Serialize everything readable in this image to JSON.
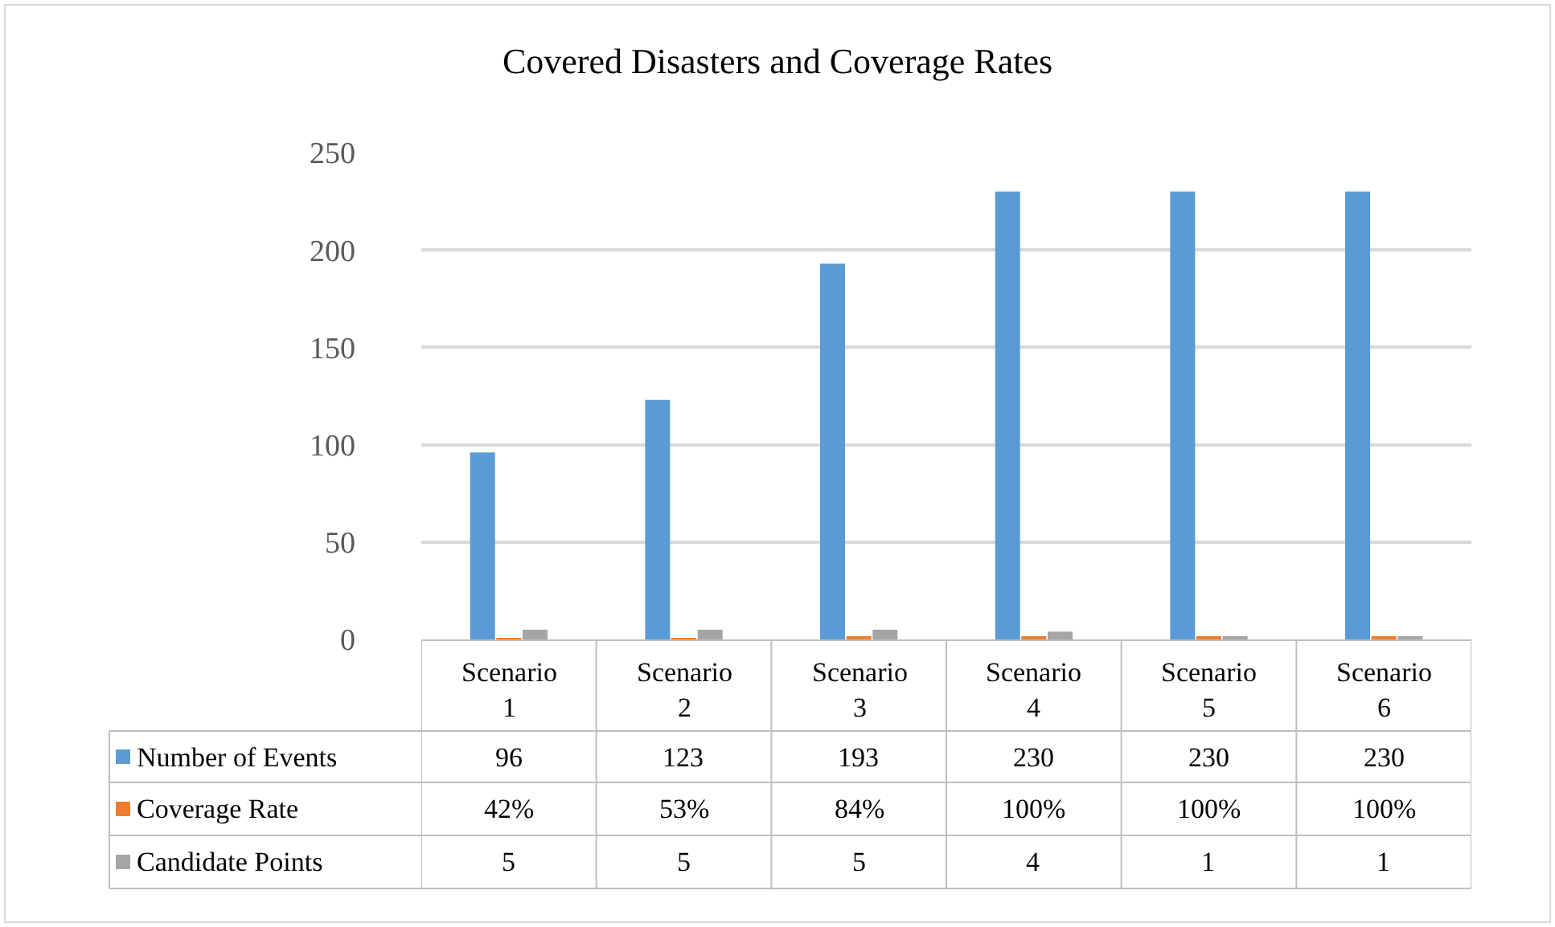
{
  "chart_data": {
    "type": "bar",
    "title": "Covered Disasters and Coverage Rates",
    "categories": [
      "Scenario 1",
      "Scenario 2",
      "Scenario 3",
      "Scenario 4",
      "Scenario 5",
      "Scenario 6"
    ],
    "series": [
      {
        "name": "Number of Events",
        "color": "#5b9bd5",
        "values": [
          96,
          123,
          193,
          230,
          230,
          230
        ],
        "value_labels": [
          "96",
          "123",
          "193",
          "230",
          "230",
          "230"
        ]
      },
      {
        "name": "Coverage Rate",
        "color": "#ed7d31",
        "values": [
          0.42,
          0.53,
          0.84,
          1,
          1,
          1
        ],
        "value_labels": [
          "42%",
          "53%",
          "84%",
          "100%",
          "100%",
          "100%"
        ]
      },
      {
        "name": "Candidate Points",
        "color": "#a5a5a5",
        "values": [
          5,
          5,
          5,
          4,
          1,
          1
        ],
        "value_labels": [
          "5",
          "5",
          "5",
          "4",
          "1",
          "1"
        ]
      }
    ],
    "ylim": [
      0,
      250
    ],
    "yticks": [
      0,
      50,
      100,
      150,
      200,
      250
    ],
    "grid": "y",
    "legend": "bottom left"
  }
}
